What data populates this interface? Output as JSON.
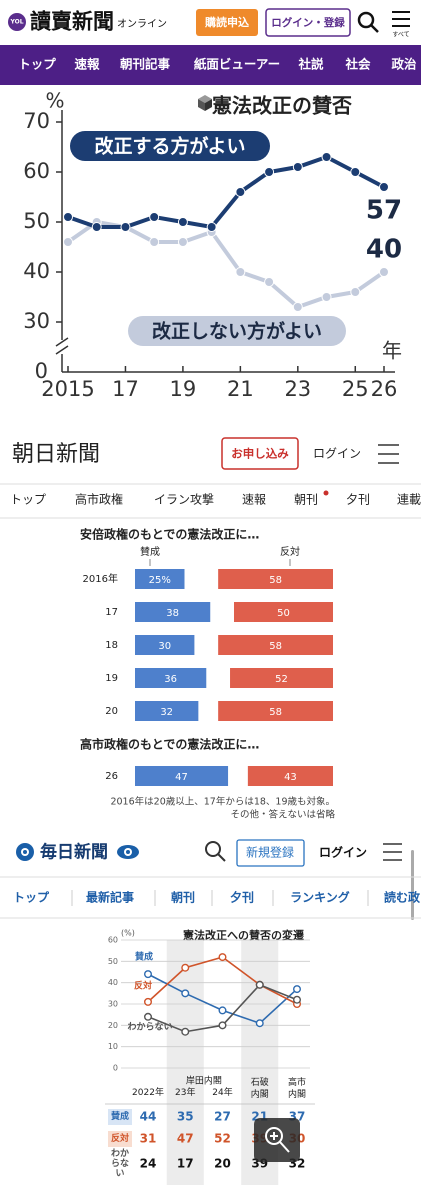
{
  "yomiuri": {
    "badge": "YOL",
    "logo": "讀賣新聞",
    "logo_sub": "オンライン",
    "subscribe": "購読申込",
    "login": "ログイン・登録",
    "menu": "すべて",
    "nav": [
      "トップ",
      "速報",
      "朝刊記事",
      "紙面ビューアー",
      "社説",
      "社会",
      "政治"
    ]
  },
  "asahi": {
    "logo": "朝日新聞",
    "subscribe": "お申し込み",
    "login": "ログイン",
    "nav": [
      "トップ",
      "高市政権",
      "イラン攻撃",
      "速報",
      "朝刊",
      "夕刊",
      "連載"
    ]
  },
  "mainichi": {
    "logo": "毎日新聞",
    "register": "新規登録",
    "login": "ログイン",
    "nav": [
      "トップ",
      "最新記事",
      "朝刊",
      "夕刊",
      "ランキング",
      "読む政"
    ]
  },
  "chart_data": [
    {
      "type": "line",
      "title": "憲法改正の賛否",
      "ylabel": "%",
      "xlabel": "年",
      "x": [
        2015,
        2016,
        2017,
        2018,
        2019,
        2020,
        2021,
        2022,
        2023,
        2024,
        2025,
        2026
      ],
      "xlim": [
        2015,
        2026
      ],
      "xticks": [
        2015,
        {
          "value": 2017,
          "label": "17"
        },
        {
          "value": 2019,
          "label": "19"
        },
        {
          "value": 2021,
          "label": "21"
        },
        {
          "value": 2023,
          "label": "23"
        },
        {
          "value": 2025,
          "label": "25"
        },
        {
          "value": 2026,
          "label": "26"
        }
      ],
      "ylim": [
        25,
        70
      ],
      "yticks": [
        30,
        40,
        50,
        60,
        70
      ],
      "y_break_label": "0",
      "series": [
        {
          "name": "改正する方がよい",
          "color": "#1c3d72",
          "values": [
            51,
            49,
            49,
            51,
            50,
            49,
            56,
            60,
            61,
            63,
            60,
            57
          ]
        },
        {
          "name": "改正しない方がよい",
          "color": "#c3cbdc",
          "values": [
            46,
            50,
            49,
            46,
            46,
            48,
            40,
            38,
            33,
            35,
            36,
            40
          ]
        }
      ]
    },
    {
      "type": "diverging_bar",
      "title": "安倍政権のもとでの憲法改正に…",
      "categories": [
        "2016年",
        "17",
        "18",
        "19",
        "20"
      ],
      "xlim": [
        0,
        100
      ],
      "series": [
        {
          "name": "賛成",
          "color": "#4e80cc",
          "values": [
            25,
            38,
            30,
            36,
            32
          ],
          "value_labels": [
            "25%",
            "38",
            "30",
            "36",
            "32"
          ]
        },
        {
          "name": "反対",
          "color": "#df5f4c",
          "values": [
            58,
            50,
            58,
            52,
            58
          ]
        }
      ]
    },
    {
      "type": "diverging_bar",
      "title": "高市政権のもとでの憲法改正に…",
      "categories": [
        "26"
      ],
      "xlim": [
        0,
        100
      ],
      "series": [
        {
          "color": "#4e80cc",
          "values": [
            47
          ]
        },
        {
          "color": "#df5f4c",
          "values": [
            43
          ]
        }
      ],
      "notes": [
        "2016年は20歳以上、17年からは18、19歳も対象。",
        "その他・答えないは省略"
      ]
    },
    {
      "type": "line",
      "title": "憲法改正への賛否の変遷",
      "ylabel": "(%)",
      "categories": [
        "2022年",
        "23年",
        "24年",
        "石破内閣",
        "高市内閣"
      ],
      "groups": [
        {
          "label": "岸田内閣",
          "categories": [
            1,
            2
          ]
        }
      ],
      "highlight": [
        1,
        3
      ],
      "ylim": [
        0,
        60
      ],
      "yticks": [
        0,
        10,
        20,
        30,
        40,
        50,
        60
      ],
      "grid": true,
      "series": [
        {
          "name": "賛成",
          "color": "#2e6bb0",
          "table_bg": "#d8e5f5",
          "values": [
            44,
            35,
            27,
            21,
            37
          ]
        },
        {
          "name": "反対",
          "color": "#d0542a",
          "table_bg": "#f8ddd0",
          "values": [
            31,
            47,
            52,
            39,
            30
          ]
        },
        {
          "name": "わからない",
          "color": "#555555",
          "values": [
            24,
            17,
            20,
            39,
            32
          ]
        }
      ]
    }
  ]
}
